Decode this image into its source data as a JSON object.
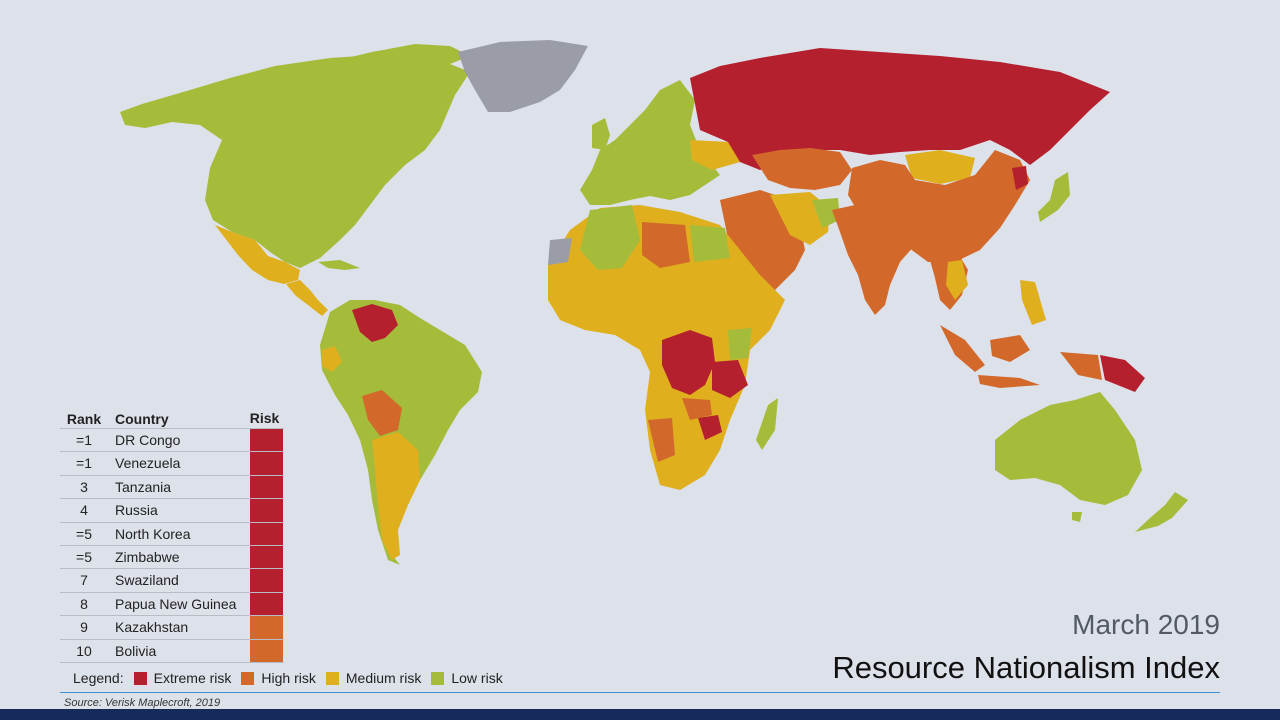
{
  "title": "Resource Nationalism Index",
  "date": "March 2019",
  "source": "Source: Verisk Maplecroft, 2019",
  "colors": {
    "extreme": "#b5202e",
    "high": "#d2692a",
    "medium": "#dfaf1e",
    "low": "#a5bc3a",
    "nodata": "#9a9ca6",
    "ocean": "#dde1ea"
  },
  "table": {
    "headers": {
      "rank": "Rank",
      "country": "Country",
      "risk": "Risk"
    },
    "rows": [
      {
        "rank": "=1",
        "country": "DR Congo",
        "risk": "extreme"
      },
      {
        "rank": "=1",
        "country": "Venezuela",
        "risk": "extreme"
      },
      {
        "rank": "3",
        "country": "Tanzania",
        "risk": "extreme"
      },
      {
        "rank": "4",
        "country": "Russia",
        "risk": "extreme"
      },
      {
        "rank": "=5",
        "country": "North Korea",
        "risk": "extreme"
      },
      {
        "rank": "=5",
        "country": "Zimbabwe",
        "risk": "extreme"
      },
      {
        "rank": "7",
        "country": "Swaziland",
        "risk": "extreme"
      },
      {
        "rank": "8",
        "country": "Papua New Guinea",
        "risk": "extreme"
      },
      {
        "rank": "9",
        "country": "Kazakhstan",
        "risk": "high"
      },
      {
        "rank": "10",
        "country": "Bolivia",
        "risk": "high"
      }
    ]
  },
  "legend": {
    "label": "Legend:",
    "items": [
      {
        "label": "Extreme risk",
        "level": "extreme"
      },
      {
        "label": "High risk",
        "level": "high"
      },
      {
        "label": "Medium risk",
        "level": "medium"
      },
      {
        "label": "Low risk",
        "level": "low"
      }
    ]
  }
}
